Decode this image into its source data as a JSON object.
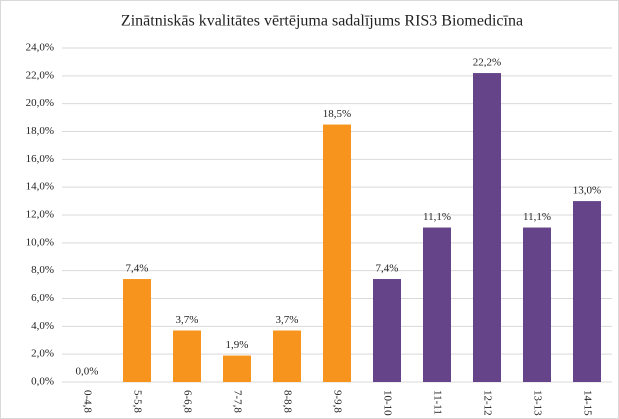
{
  "chart_data": {
    "type": "bar",
    "title": "Zinātniskās kvalitātes vērtējuma sadalījums RIS3 Biomedicīna",
    "categories": [
      "0-4,8",
      "5-5,8",
      "6-6,8",
      "7-7,8",
      "8-8,8",
      "9-9,8",
      "10-10",
      "11-11",
      "12-12",
      "13-13",
      "14-15"
    ],
    "values": [
      0,
      7.4,
      3.7,
      1.9,
      3.7,
      18.5,
      7.4,
      11.1,
      22.2,
      11.1,
      13.0
    ],
    "value_labels": [
      "0,0%",
      "7,4%",
      "3,7%",
      "1,9%",
      "3,7%",
      "18,5%",
      "7,4%",
      "11,1%",
      "22,2%",
      "11,1%",
      "13,0%"
    ],
    "colors": [
      "#f7941d",
      "#f7941d",
      "#f7941d",
      "#f7941d",
      "#f7941d",
      "#f7941d",
      "#66448a",
      "#66448a",
      "#66448a",
      "#66448a",
      "#66448a"
    ],
    "ylim": [
      0,
      24
    ],
    "yticks": [
      {
        "value": 0,
        "label": "0,0%"
      },
      {
        "value": 2,
        "label": "2,0%"
      },
      {
        "value": 4,
        "label": "4,0%"
      },
      {
        "value": 6,
        "label": "6,0%"
      },
      {
        "value": 8,
        "label": "8,0%"
      },
      {
        "value": 10,
        "label": "10,0%"
      },
      {
        "value": 12,
        "label": "12,0%"
      },
      {
        "value": 14,
        "label": "14,0%"
      },
      {
        "value": 16,
        "label": "16,0%"
      },
      {
        "value": 18,
        "label": "18,0%"
      },
      {
        "value": 20,
        "label": "20,0%"
      },
      {
        "value": 22,
        "label": "22,0%"
      },
      {
        "value": 24,
        "label": "24,0%"
      }
    ],
    "grid": true
  }
}
